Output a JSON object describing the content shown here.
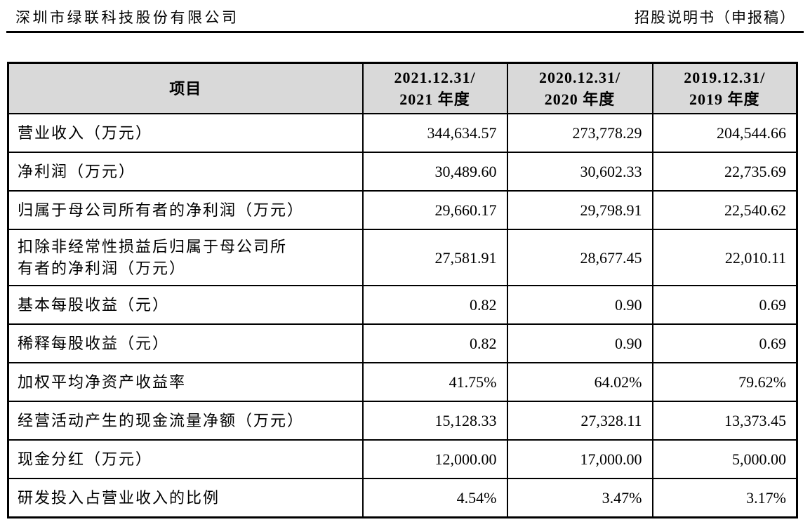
{
  "page_header": {
    "company": "深圳市绿联科技股份有限公司",
    "doc_title": "招股说明书（申报稿）"
  },
  "table": {
    "header": {
      "item": "项目",
      "col_2021": "2021.12.31/\n2021 年度",
      "col_2020": "2020.12.31/\n2020 年度",
      "col_2019": "2019.12.31/\n2019 年度"
    },
    "rows": [
      {
        "label": "营业收入（万元）",
        "v2021": "344,634.57",
        "v2020": "273,778.29",
        "v2019": "204,544.66"
      },
      {
        "label": "净利润（万元）",
        "v2021": "30,489.60",
        "v2020": "30,602.33",
        "v2019": "22,735.69"
      },
      {
        "label": "归属于母公司所有者的净利润（万元）",
        "v2021": "29,660.17",
        "v2020": "29,798.91",
        "v2019": "22,540.62"
      },
      {
        "label": "扣除非经常性损益后归属于母公司所\n有者的净利润（万元）",
        "v2021": "27,581.91",
        "v2020": "28,677.45",
        "v2019": "22,010.11"
      },
      {
        "label": "基本每股收益（元）",
        "v2021": "0.82",
        "v2020": "0.90",
        "v2019": "0.69"
      },
      {
        "label": "稀释每股收益（元）",
        "v2021": "0.82",
        "v2020": "0.90",
        "v2019": "0.69"
      },
      {
        "label": "加权平均净资产收益率",
        "v2021": "41.75%",
        "v2020": "64.02%",
        "v2019": "79.62%"
      },
      {
        "label": "经营活动产生的现金流量净额（万元）",
        "v2021": "15,128.33",
        "v2020": "27,328.11",
        "v2019": "13,373.45"
      },
      {
        "label": "现金分红（万元）",
        "v2021": "12,000.00",
        "v2020": "17,000.00",
        "v2019": "5,000.00"
      },
      {
        "label": "研发投入占营业收入的比例",
        "v2021": "4.54%",
        "v2020": "3.47%",
        "v2019": "3.17%"
      }
    ]
  },
  "colors": {
    "header_bg": "#d9d9d9",
    "border": "#000000",
    "text": "#000000"
  }
}
